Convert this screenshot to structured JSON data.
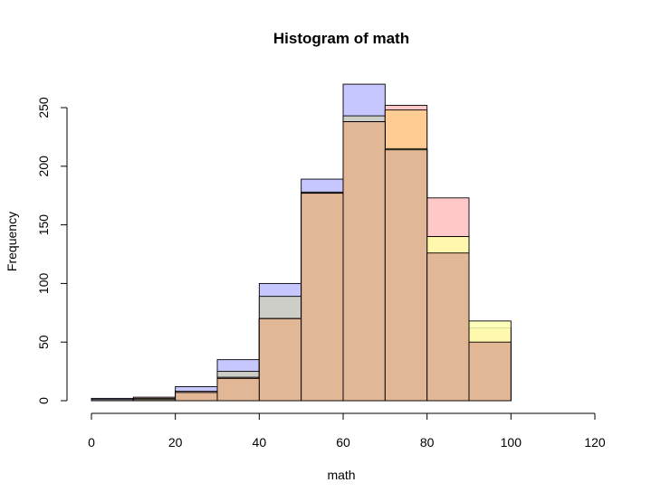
{
  "chart_data": {
    "type": "bar",
    "title": "Histogram of math",
    "xlabel": "math",
    "ylabel": "Frequency",
    "xlim": [
      0,
      120
    ],
    "ylim": [
      0,
      270
    ],
    "x_ticks": [
      0,
      20,
      40,
      60,
      80,
      100,
      120
    ],
    "y_ticks": [
      0,
      50,
      100,
      150,
      200,
      250
    ],
    "bin_edges": [
      0,
      10,
      20,
      30,
      40,
      50,
      60,
      70,
      80,
      90,
      100
    ],
    "grid": false,
    "legend": "none",
    "series": [
      {
        "values": [
          2,
          1,
          12,
          35,
          100,
          189,
          270,
          214,
          126,
          50
        ],
        "color": "#bdbdff"
      },
      {
        "values": [
          1,
          2,
          7,
          25,
          89,
          178,
          243,
          214,
          126,
          50
        ],
        "color": "#cfcfbf"
      },
      {
        "values": [
          0,
          3,
          8,
          20,
          70,
          177,
          238,
          252,
          173,
          50
        ],
        "color": "#ffc0c0"
      },
      {
        "values": [
          0,
          2,
          7,
          19,
          70,
          177,
          238,
          248,
          140,
          62
        ],
        "color": "#ffcc8a"
      },
      {
        "values": [
          0,
          2,
          7,
          19,
          70,
          177,
          238,
          215,
          140,
          68
        ],
        "color": "#ffffb0"
      },
      {
        "values": [
          0,
          1,
          7,
          19,
          70,
          177,
          238,
          214,
          126,
          50
        ],
        "color": "#dcab90"
      }
    ]
  }
}
